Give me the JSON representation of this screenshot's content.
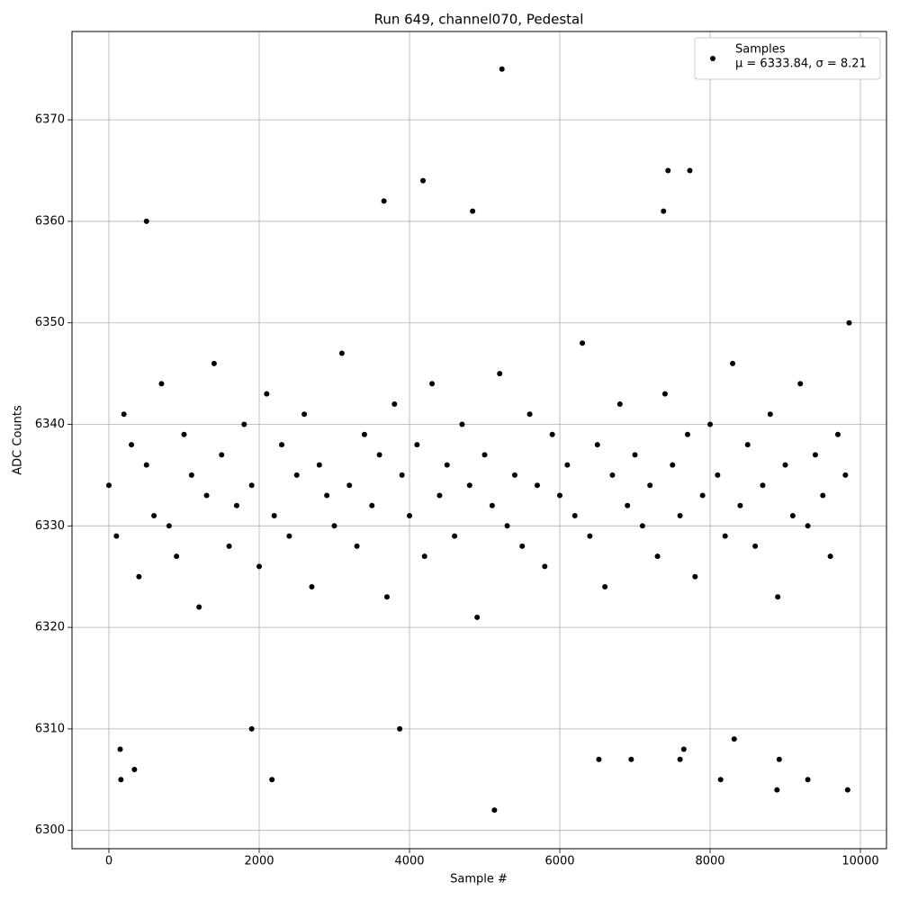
{
  "chart_data": {
    "type": "scatter",
    "title": "Run 649, channel070, Pedestal",
    "xlabel": "Sample #",
    "ylabel": "ADC Counts",
    "series": [
      {
        "name": "Samples",
        "color": "#000000",
        "x": [
          0,
          100,
          200,
          300,
          400,
          500,
          600,
          700,
          800,
          900,
          1000,
          1100,
          1200,
          1300,
          1400,
          1500,
          1600,
          1700,
          1800,
          1900,
          2000,
          2100,
          2200,
          2300,
          2400,
          2500,
          2600,
          2700,
          2800,
          2900,
          3000,
          3100,
          3200,
          3300,
          3400,
          3500,
          3600,
          3700,
          3800,
          3900,
          4000,
          4100,
          4200,
          4300,
          4400,
          4500,
          4600,
          4700,
          4800,
          4900,
          5000,
          5100,
          5200,
          5300,
          5400,
          5500,
          5600,
          5700,
          5800,
          5900,
          6000,
          6100,
          6200,
          6300,
          6400,
          6500,
          6600,
          6700,
          6800,
          6900,
          7000,
          7100,
          7200,
          7300,
          7400,
          7500,
          7600,
          7700,
          7800,
          7900,
          8000,
          8100,
          8200,
          8300,
          8400,
          8500,
          8600,
          8700,
          8800,
          8900,
          9000,
          9100,
          9200,
          9300,
          9400,
          9500,
          9600,
          9700,
          9800,
          5230,
          5130,
          160,
          150,
          340,
          500,
          3660,
          4180,
          7440,
          7730,
          7380,
          4840,
          8890,
          9830,
          2170,
          1900,
          3870,
          8320,
          8140,
          9300,
          7600,
          7650,
          6950,
          6520,
          8920,
          9850
        ],
        "values": [
          6334,
          6329,
          6341,
          6338,
          6325,
          6336,
          6331,
          6344,
          6330,
          6327,
          6339,
          6335,
          6322,
          6333,
          6346,
          6337,
          6328,
          6332,
          6340,
          6334,
          6326,
          6343,
          6331,
          6338,
          6329,
          6335,
          6341,
          6324,
          6336,
          6333,
          6330,
          6347,
          6334,
          6328,
          6339,
          6332,
          6337,
          6323,
          6342,
          6335,
          6331,
          6338,
          6327,
          6344,
          6333,
          6336,
          6329,
          6340,
          6334,
          6321,
          6337,
          6332,
          6345,
          6330,
          6335,
          6328,
          6341,
          6334,
          6326,
          6339,
          6333,
          6336,
          6331,
          6348,
          6329,
          6338,
          6324,
          6335,
          6342,
          6332,
          6337,
          6330,
          6334,
          6327,
          6343,
          6336,
          6331,
          6339,
          6325,
          6333,
          6340,
          6335,
          6329,
          6346,
          6332,
          6338,
          6328,
          6334,
          6341,
          6323,
          6336,
          6331,
          6344,
          6330,
          6337,
          6333,
          6327,
          6339,
          6335,
          6375,
          6302,
          6305,
          6308,
          6306,
          6360,
          6362,
          6364,
          6365,
          6365,
          6361,
          6361,
          6304,
          6304,
          6305,
          6310,
          6310,
          6309,
          6305,
          6305,
          6307,
          6308,
          6307,
          6307,
          6307,
          6350
        ]
      }
    ],
    "legend_label": "μ = 6333.84, σ = 8.21",
    "legend": "upper right",
    "xlim": [
      -491,
      10347
    ],
    "ylim": [
      6298.2,
      6378.7
    ],
    "xticks": [
      0,
      2000,
      4000,
      6000,
      8000,
      10000
    ],
    "yticks": [
      6300,
      6310,
      6320,
      6330,
      6340,
      6350,
      6360,
      6370
    ],
    "grid": true
  }
}
